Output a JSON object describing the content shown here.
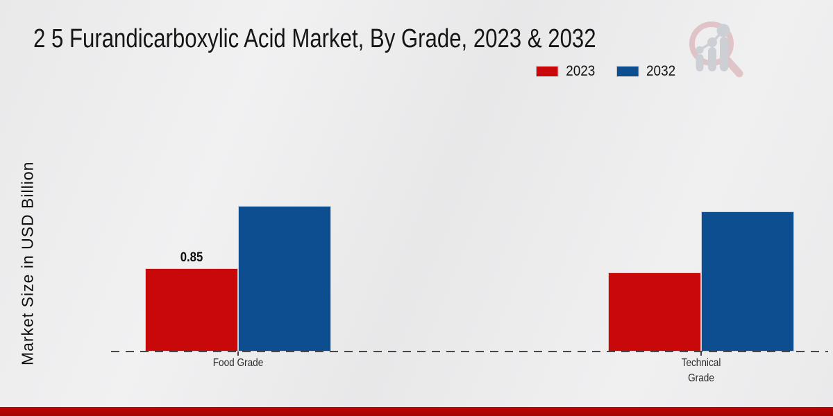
{
  "page": {
    "title": "2 5 Furandicarboxylic Acid Market, By Grade, 2023 & 2032",
    "ylabel": "Market Size in USD Billion",
    "icons": {
      "watermark": "magnifier-bar-chart-logo"
    }
  },
  "legend": [
    {
      "label": "2023",
      "color": "#c90909"
    },
    {
      "label": "2032",
      "color": "#0d4e91"
    }
  ],
  "chart_data": {
    "type": "bar",
    "title": "2 5 Furandicarboxylic Acid Market, By Grade, 2023 & 2032",
    "xlabel": "",
    "ylabel": "Market Size in USD Billion",
    "categories": [
      "Food Grade",
      "Technical Grade"
    ],
    "series": [
      {
        "name": "2023",
        "color": "#c90909",
        "values": [
          0.85,
          0.81
        ]
      },
      {
        "name": "2032",
        "color": "#0d4e91",
        "values": [
          1.49,
          1.43
        ]
      }
    ],
    "bar_labels": [
      {
        "category": "Food Grade",
        "series": "2023",
        "text": "0.85"
      }
    ],
    "ylim": [
      0,
      2.5
    ],
    "grid": false,
    "y_ticks_visible": false,
    "baseline_style": "dashed",
    "legend_position": "top-right"
  },
  "footer": {
    "color": "#bf0505"
  }
}
